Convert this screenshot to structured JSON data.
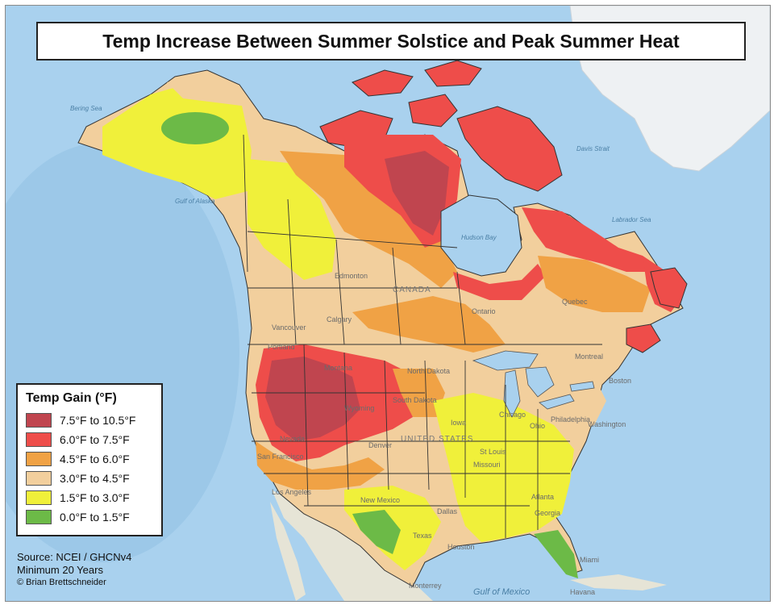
{
  "map": {
    "title": "Temp Increase Between Summer Solstice and Peak Summer Heat",
    "legend": {
      "title": "Temp Gain (°F)",
      "items": [
        {
          "label": "7.5°F to 10.5°F",
          "color": "#c0454f"
        },
        {
          "label": "6.0°F to 7.5°F",
          "color": "#ee4d4a"
        },
        {
          "label": "4.5°F to 6.0°F",
          "color": "#f0a245"
        },
        {
          "label": "3.0°F to 4.5°F",
          "color": "#f2cf9d"
        },
        {
          "label": "1.5°F to 3.0°F",
          "color": "#f0f03a"
        },
        {
          "label": "0.0°F to 1.5°F",
          "color": "#6cba47"
        }
      ]
    },
    "source": {
      "line1": "Source: NCEI / GHCNv4",
      "line2": "Minimum 20 Years",
      "credit": "© Brian Brettschneider"
    },
    "labels": {
      "canada": "CANADA",
      "united_states": "UNITED STATES",
      "edmonton": "Edmonton",
      "calgary": "Calgary",
      "vancouver": "Vancouver",
      "portland": "Portland",
      "montana": "Montana",
      "wyoming": "Wyoming",
      "nevada": "Nevada",
      "san_francisco": "San Francisco",
      "los_angeles": "Los Angeles",
      "denver": "Denver",
      "texas": "Texas",
      "dallas": "Dallas",
      "houston": "Houston",
      "st_louis": "St Louis",
      "missouri": "Missouri",
      "iowa": "Iowa",
      "chicago": "Chicago",
      "ohio": "Ohio",
      "philadelphia": "Philadelphia",
      "washington": "Washington",
      "boston": "Boston",
      "montreal": "Montreal",
      "quebec": "Quebec",
      "ontario": "Ontario",
      "atlanta": "Atlanta",
      "georgia": "Georgia",
      "miami": "Miami",
      "havana": "Havana",
      "monterrey": "Monterrey",
      "new_mexico": "New Mexico",
      "south_dakota": "South Dakota",
      "north_dakota": "North Dakota",
      "hudson_bay": "Hudson Bay",
      "labrador_sea": "Labrador Sea",
      "davis_strait": "Davis Strait",
      "bering_sea": "Bering Sea",
      "gulf_of_alaska": "Gulf of Alaska",
      "gulf_of_mexico": "Gulf of Mexico"
    }
  }
}
